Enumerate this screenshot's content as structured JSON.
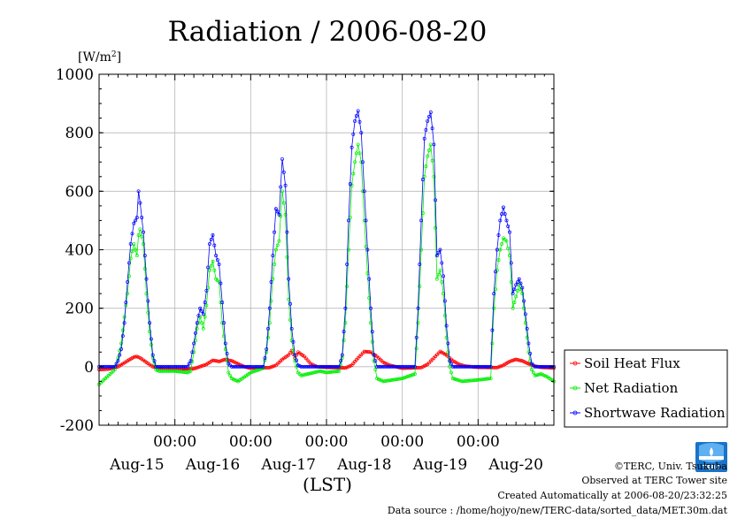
{
  "chart_data": {
    "type": "line",
    "title": "Radiation / 2006-08-20",
    "y_unit": "[W/m",
    "y_unit_sup": "2",
    "y_unit_close": "]",
    "xlabel": "(LST)",
    "ylim": [
      -200,
      1000
    ],
    "ytick_values": [
      -200,
      0,
      200,
      400,
      600,
      800,
      1000
    ],
    "ytick_labels": [
      "-200",
      "0",
      "200",
      "400",
      "600",
      "800",
      "1000"
    ],
    "xlim_hours": [
      0,
      144
    ],
    "x_time_labels": [
      "00:00",
      "00:00",
      "00:00",
      "00:00",
      "00:00"
    ],
    "x_time_label_hours": [
      24,
      48,
      72,
      96,
      120
    ],
    "x_date_labels": [
      "Aug-15",
      "Aug-16",
      "Aug-17",
      "Aug-18",
      "Aug-19",
      "Aug-20"
    ],
    "x_date_label_hours": [
      12,
      36,
      60,
      84,
      108,
      132
    ],
    "grid": true,
    "legend_position": "right-bottom",
    "series": [
      {
        "name": "Soil Heat Flux",
        "color": "#ff0000",
        "points": [
          [
            0,
            -10
          ],
          [
            3,
            -8
          ],
          [
            6,
            0
          ],
          [
            9,
            20
          ],
          [
            11,
            33
          ],
          [
            12,
            35
          ],
          [
            13,
            30
          ],
          [
            15,
            15
          ],
          [
            17,
            0
          ],
          [
            19,
            -6
          ],
          [
            24,
            -8
          ],
          [
            30,
            -7
          ],
          [
            34,
            8
          ],
          [
            36,
            22
          ],
          [
            38,
            18
          ],
          [
            40,
            25
          ],
          [
            42,
            20
          ],
          [
            44,
            10
          ],
          [
            46,
            0
          ],
          [
            48,
            -5
          ],
          [
            54,
            -3
          ],
          [
            56,
            5
          ],
          [
            58,
            25
          ],
          [
            60,
            40
          ],
          [
            61,
            55
          ],
          [
            62,
            30
          ],
          [
            63,
            50
          ],
          [
            65,
            35
          ],
          [
            67,
            10
          ],
          [
            69,
            0
          ],
          [
            72,
            -2
          ],
          [
            78,
            -4
          ],
          [
            80,
            5
          ],
          [
            82,
            30
          ],
          [
            84,
            52
          ],
          [
            86,
            50
          ],
          [
            88,
            35
          ],
          [
            90,
            15
          ],
          [
            92,
            5
          ],
          [
            96,
            -5
          ],
          [
            102,
            -3
          ],
          [
            104,
            8
          ],
          [
            106,
            30
          ],
          [
            108,
            52
          ],
          [
            110,
            40
          ],
          [
            112,
            20
          ],
          [
            114,
            8
          ],
          [
            116,
            2
          ],
          [
            120,
            -2
          ],
          [
            126,
            -3
          ],
          [
            128,
            5
          ],
          [
            130,
            18
          ],
          [
            132,
            25
          ],
          [
            134,
            20
          ],
          [
            136,
            10
          ],
          [
            138,
            2
          ],
          [
            140,
            -2
          ],
          [
            144,
            -4
          ]
        ]
      },
      {
        "name": "Net Radiation",
        "color": "#00ee00",
        "points": [
          [
            0,
            -60
          ],
          [
            2,
            -40
          ],
          [
            5,
            -10
          ],
          [
            6,
            30
          ],
          [
            7,
            80
          ],
          [
            8,
            170
          ],
          [
            9,
            250
          ],
          [
            10,
            370
          ],
          [
            11,
            420
          ],
          [
            12,
            380
          ],
          [
            12.5,
            450
          ],
          [
            13,
            470
          ],
          [
            14,
            420
          ],
          [
            15,
            250
          ],
          [
            16,
            120
          ],
          [
            17,
            30
          ],
          [
            18,
            -10
          ],
          [
            19,
            -15
          ],
          [
            24,
            -15
          ],
          [
            28,
            -20
          ],
          [
            29,
            -15
          ],
          [
            30,
            50
          ],
          [
            31,
            130
          ],
          [
            32,
            170
          ],
          [
            33,
            130
          ],
          [
            34,
            210
          ],
          [
            35,
            330
          ],
          [
            36,
            360
          ],
          [
            37,
            300
          ],
          [
            38,
            290
          ],
          [
            39,
            150
          ],
          [
            40,
            60
          ],
          [
            41,
            -20
          ],
          [
            42,
            -40
          ],
          [
            44,
            -50
          ],
          [
            48,
            -20
          ],
          [
            52,
            -5
          ],
          [
            53,
            50
          ],
          [
            54,
            150
          ],
          [
            55,
            300
          ],
          [
            56,
            400
          ],
          [
            57,
            430
          ],
          [
            58,
            600
          ],
          [
            59,
            520
          ],
          [
            60,
            230
          ],
          [
            61,
            90
          ],
          [
            62,
            20
          ],
          [
            63,
            -20
          ],
          [
            64,
            -30
          ],
          [
            66,
            -25
          ],
          [
            68,
            -20
          ],
          [
            70,
            -15
          ],
          [
            72,
            -20
          ],
          [
            76,
            -15
          ],
          [
            77,
            30
          ],
          [
            78,
            150
          ],
          [
            79,
            400
          ],
          [
            80,
            620
          ],
          [
            81,
            700
          ],
          [
            82,
            760
          ],
          [
            83,
            700
          ],
          [
            84,
            500
          ],
          [
            85,
            320
          ],
          [
            86,
            150
          ],
          [
            87,
            20
          ],
          [
            88,
            -40
          ],
          [
            90,
            -50
          ],
          [
            96,
            -40
          ],
          [
            100,
            -25
          ],
          [
            101,
            150
          ],
          [
            102,
            400
          ],
          [
            103,
            650
          ],
          [
            104,
            720
          ],
          [
            105,
            760
          ],
          [
            106,
            650
          ],
          [
            107,
            300
          ],
          [
            108,
            330
          ],
          [
            109,
            250
          ],
          [
            110,
            100
          ],
          [
            111,
            0
          ],
          [
            112,
            -40
          ],
          [
            115,
            -50
          ],
          [
            120,
            -45
          ],
          [
            124,
            -40
          ],
          [
            125,
            200
          ],
          [
            126,
            330
          ],
          [
            127,
            400
          ],
          [
            128,
            440
          ],
          [
            129,
            430
          ],
          [
            130,
            380
          ],
          [
            131,
            200
          ],
          [
            132,
            240
          ],
          [
            133,
            280
          ],
          [
            134,
            250
          ],
          [
            135,
            150
          ],
          [
            136,
            50
          ],
          [
            137,
            -10
          ],
          [
            138,
            -30
          ],
          [
            140,
            -25
          ],
          [
            142,
            -35
          ],
          [
            144,
            -50
          ]
        ]
      },
      {
        "name": "Shortwave Radiation",
        "color": "#0000ff",
        "points": [
          [
            0,
            0
          ],
          [
            5,
            0
          ],
          [
            6,
            20
          ],
          [
            7,
            60
          ],
          [
            8,
            150
          ],
          [
            9,
            290
          ],
          [
            10,
            420
          ],
          [
            11,
            490
          ],
          [
            12,
            510
          ],
          [
            12.5,
            600
          ],
          [
            13,
            560
          ],
          [
            14,
            460
          ],
          [
            15,
            300
          ],
          [
            16,
            150
          ],
          [
            17,
            40
          ],
          [
            18,
            0
          ],
          [
            24,
            0
          ],
          [
            28,
            0
          ],
          [
            29,
            20
          ],
          [
            30,
            80
          ],
          [
            31,
            150
          ],
          [
            32,
            200
          ],
          [
            33,
            180
          ],
          [
            34,
            260
          ],
          [
            35,
            420
          ],
          [
            36,
            450
          ],
          [
            37,
            380
          ],
          [
            38,
            350
          ],
          [
            39,
            220
          ],
          [
            40,
            80
          ],
          [
            41,
            10
          ],
          [
            42,
            0
          ],
          [
            48,
            0
          ],
          [
            52,
            0
          ],
          [
            53,
            60
          ],
          [
            54,
            200
          ],
          [
            55,
            380
          ],
          [
            56,
            540
          ],
          [
            57,
            520
          ],
          [
            58,
            710
          ],
          [
            59,
            620
          ],
          [
            60,
            300
          ],
          [
            61,
            130
          ],
          [
            62,
            40
          ],
          [
            63,
            5
          ],
          [
            64,
            0
          ],
          [
            72,
            0
          ],
          [
            76,
            0
          ],
          [
            77,
            40
          ],
          [
            78,
            200
          ],
          [
            79,
            500
          ],
          [
            80,
            750
          ],
          [
            81,
            840
          ],
          [
            82,
            875
          ],
          [
            83,
            800
          ],
          [
            84,
            600
          ],
          [
            85,
            400
          ],
          [
            86,
            200
          ],
          [
            87,
            40
          ],
          [
            88,
            0
          ],
          [
            96,
            0
          ],
          [
            100,
            0
          ],
          [
            101,
            200
          ],
          [
            102,
            500
          ],
          [
            103,
            780
          ],
          [
            104,
            840
          ],
          [
            105,
            870
          ],
          [
            106,
            760
          ],
          [
            107,
            380
          ],
          [
            108,
            400
          ],
          [
            109,
            310
          ],
          [
            110,
            140
          ],
          [
            111,
            20
          ],
          [
            112,
            0
          ],
          [
            120,
            0
          ],
          [
            124,
            0
          ],
          [
            125,
            250
          ],
          [
            126,
            400
          ],
          [
            127,
            500
          ],
          [
            128,
            545
          ],
          [
            129,
            500
          ],
          [
            130,
            460
          ],
          [
            131,
            250
          ],
          [
            132,
            280
          ],
          [
            133,
            300
          ],
          [
            134,
            270
          ],
          [
            135,
            180
          ],
          [
            136,
            80
          ],
          [
            137,
            10
          ],
          [
            138,
            0
          ],
          [
            144,
            0
          ]
        ]
      }
    ]
  },
  "credit": {
    "copyright": "©TERC, Univ. Tsukuba",
    "observed": "Observed at TERC Tower site",
    "created": "Created Automatically at 2006-08-20/23:32:25",
    "source": "Data source : /home/hojyo/new/TERC-data/sorted_data/MET.30m.dat"
  },
  "logo_text": "TERC"
}
